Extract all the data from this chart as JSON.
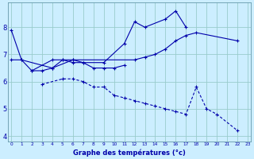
{
  "title": "Graphe des températures (°c)",
  "background_color": "#cceeff",
  "grid_color": "#99cccc",
  "line_color": "#0000aa",
  "ylim": [
    3.8,
    8.9
  ],
  "yticks": [
    4,
    5,
    6,
    7,
    8
  ],
  "xlim": [
    -0.3,
    23.3
  ],
  "line1_solid": {
    "x": [
      0,
      1,
      2,
      4,
      5,
      6,
      7,
      9,
      11,
      12,
      13,
      15,
      16,
      17
    ],
    "y": [
      7.9,
      6.8,
      6.4,
      6.8,
      6.8,
      6.7,
      6.7,
      6.7,
      7.4,
      8.2,
      8.0,
      8.3,
      8.6,
      8.0
    ]
  },
  "line2_solid": {
    "x": [
      2,
      3,
      4,
      5,
      6,
      7,
      8,
      9,
      10,
      11
    ],
    "y": [
      6.4,
      6.4,
      6.5,
      6.8,
      6.8,
      6.7,
      6.5,
      6.5,
      6.5,
      6.6
    ]
  },
  "line3_solid": {
    "x": [
      0,
      1,
      4,
      6,
      12,
      13,
      14,
      15,
      16,
      17,
      18,
      22
    ],
    "y": [
      6.8,
      6.8,
      6.5,
      6.8,
      6.8,
      6.9,
      7.0,
      7.2,
      7.5,
      7.7,
      7.8,
      7.5
    ]
  },
  "line4_dashed": {
    "x": [
      3,
      5,
      6,
      7,
      8,
      9,
      10,
      11,
      12,
      13,
      14,
      15,
      16,
      17,
      18,
      19,
      20,
      22
    ],
    "y": [
      5.9,
      6.1,
      6.1,
      6.0,
      5.8,
      5.8,
      5.5,
      5.4,
      5.3,
      5.2,
      5.1,
      5.0,
      4.9,
      4.8,
      5.8,
      5.0,
      4.8,
      4.2
    ]
  }
}
